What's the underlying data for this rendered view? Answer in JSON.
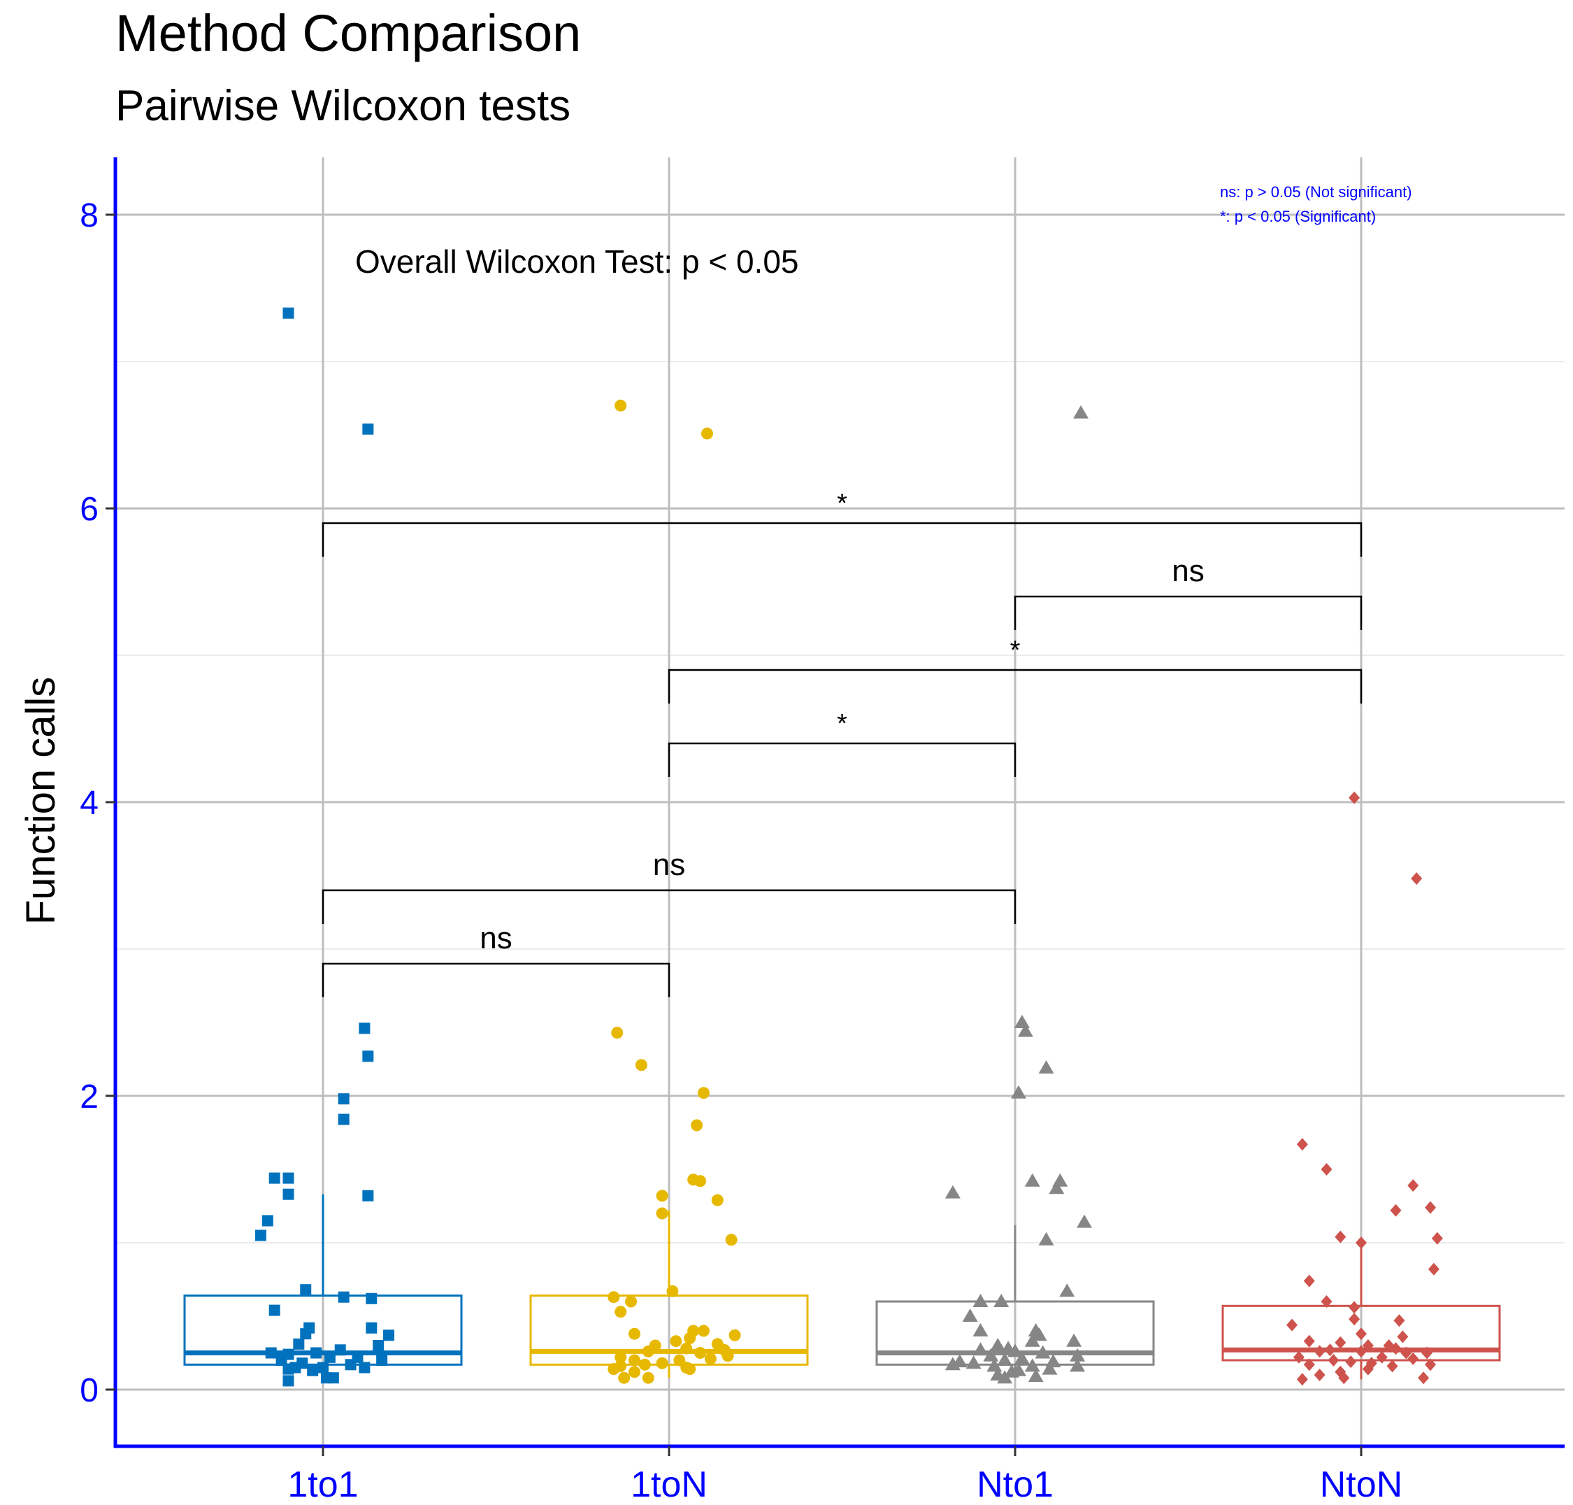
{
  "chart_data": {
    "type": "box",
    "title": "Method Comparison",
    "subtitle": "Pairwise Wilcoxon tests",
    "ylabel": "Function calls",
    "xlabel": "",
    "ylim": [
      -0.4,
      8.4
    ],
    "yticks": [
      0,
      2,
      4,
      6,
      8
    ],
    "categories": [
      "1to1",
      "1toN",
      "Nto1",
      "NtoN"
    ],
    "annotation": "Overall Wilcoxon Test: p < 0.05",
    "legend_notes": [
      "ns: p > 0.05 (Not significant)",
      "*: p < 0.05 (Significant)"
    ],
    "colors": {
      "1to1": "#0072BD",
      "1toN": "#E7B800",
      "Nto1": "#868686",
      "NtoN": "#CD534C",
      "axis": "#0000FF",
      "grid": "#BEBEBE"
    },
    "series": [
      {
        "name": "1to1",
        "shape": "square",
        "box": {
          "q1": 0.17,
          "median": 0.25,
          "q3": 0.64,
          "whisker_low": 0.05,
          "whisker_high": 1.33
        },
        "points": [
          [
            -0.1,
            7.33
          ],
          [
            0.13,
            6.54
          ],
          [
            0.12,
            2.46
          ],
          [
            0.13,
            2.27
          ],
          [
            0.06,
            1.98
          ],
          [
            0.06,
            1.84
          ],
          [
            0.13,
            1.32
          ],
          [
            -0.14,
            1.44
          ],
          [
            -0.1,
            1.44
          ],
          [
            -0.1,
            1.33
          ],
          [
            -0.16,
            1.15
          ],
          [
            -0.18,
            1.05
          ],
          [
            -0.05,
            0.68
          ],
          [
            0.06,
            0.63
          ],
          [
            0.14,
            0.62
          ],
          [
            -0.14,
            0.54
          ],
          [
            -0.04,
            0.42
          ],
          [
            -0.05,
            0.38
          ],
          [
            0.14,
            0.42
          ],
          [
            0.19,
            0.37
          ],
          [
            0.16,
            0.3
          ],
          [
            -0.07,
            0.31
          ],
          [
            0.05,
            0.27
          ],
          [
            -0.15,
            0.25
          ],
          [
            -0.1,
            0.24
          ],
          [
            -0.02,
            0.25
          ],
          [
            0.02,
            0.22
          ],
          [
            0.1,
            0.22
          ],
          [
            0.17,
            0.2
          ],
          [
            -0.12,
            0.2
          ],
          [
            -0.06,
            0.18
          ],
          [
            0.08,
            0.17
          ],
          [
            -0.1,
            0.14
          ],
          [
            0.0,
            0.15
          ],
          [
            0.12,
            0.15
          ],
          [
            -0.03,
            0.13
          ],
          [
            -0.08,
            0.15
          ],
          [
            -0.1,
            0.06
          ],
          [
            0.01,
            0.08
          ],
          [
            0.03,
            0.08
          ]
        ]
      },
      {
        "name": "1toN",
        "shape": "circle",
        "box": {
          "q1": 0.17,
          "median": 0.26,
          "q3": 0.64,
          "whisker_low": 0.08,
          "whisker_high": 1.22
        },
        "points": [
          [
            -0.14,
            6.7
          ],
          [
            0.11,
            6.51
          ],
          [
            -0.15,
            2.43
          ],
          [
            -0.08,
            2.21
          ],
          [
            0.1,
            2.02
          ],
          [
            0.08,
            1.8
          ],
          [
            0.07,
            1.43
          ],
          [
            0.09,
            1.42
          ],
          [
            -0.02,
            1.32
          ],
          [
            0.14,
            1.29
          ],
          [
            -0.02,
            1.2
          ],
          [
            0.18,
            1.02
          ],
          [
            0.01,
            0.67
          ],
          [
            -0.16,
            0.63
          ],
          [
            -0.11,
            0.6
          ],
          [
            -0.14,
            0.53
          ],
          [
            0.07,
            0.4
          ],
          [
            0.1,
            0.4
          ],
          [
            0.19,
            0.37
          ],
          [
            -0.1,
            0.38
          ],
          [
            0.02,
            0.33
          ],
          [
            0.06,
            0.35
          ],
          [
            0.14,
            0.31
          ],
          [
            -0.04,
            0.3
          ],
          [
            0.05,
            0.28
          ],
          [
            0.16,
            0.27
          ],
          [
            -0.06,
            0.26
          ],
          [
            0.09,
            0.25
          ],
          [
            0.17,
            0.23
          ],
          [
            -0.14,
            0.22
          ],
          [
            -0.1,
            0.2
          ],
          [
            0.03,
            0.2
          ],
          [
            0.12,
            0.21
          ],
          [
            -0.02,
            0.18
          ],
          [
            -0.07,
            0.17
          ],
          [
            0.05,
            0.15
          ],
          [
            0.06,
            0.14
          ],
          [
            -0.16,
            0.14
          ],
          [
            -0.1,
            0.12
          ],
          [
            -0.13,
            0.08
          ],
          [
            -0.06,
            0.08
          ],
          [
            -0.14,
            0.16
          ]
        ]
      },
      {
        "name": "Nto1",
        "shape": "triangle",
        "box": {
          "q1": 0.17,
          "median": 0.25,
          "q3": 0.6,
          "whisker_low": 0.08,
          "whisker_high": 1.12
        },
        "points": [
          [
            0.19,
            6.65
          ],
          [
            0.02,
            2.5
          ],
          [
            0.03,
            2.44
          ],
          [
            0.09,
            2.19
          ],
          [
            0.01,
            2.02
          ],
          [
            0.05,
            1.42
          ],
          [
            0.13,
            1.42
          ],
          [
            0.12,
            1.37
          ],
          [
            -0.18,
            1.34
          ],
          [
            0.2,
            1.14
          ],
          [
            0.09,
            1.02
          ],
          [
            0.15,
            0.67
          ],
          [
            -0.1,
            0.6
          ],
          [
            -0.04,
            0.6
          ],
          [
            -0.13,
            0.5
          ],
          [
            0.06,
            0.4
          ],
          [
            0.07,
            0.37
          ],
          [
            -0.1,
            0.4
          ],
          [
            0.05,
            0.33
          ],
          [
            0.17,
            0.33
          ],
          [
            -0.05,
            0.3
          ],
          [
            -0.02,
            0.28
          ],
          [
            0.0,
            0.26
          ],
          [
            -0.1,
            0.27
          ],
          [
            0.08,
            0.25
          ],
          [
            0.18,
            0.23
          ],
          [
            -0.07,
            0.23
          ],
          [
            -0.03,
            0.2
          ],
          [
            0.02,
            0.21
          ],
          [
            0.11,
            0.19
          ],
          [
            -0.16,
            0.19
          ],
          [
            -0.12,
            0.18
          ],
          [
            -0.06,
            0.16
          ],
          [
            0.05,
            0.16
          ],
          [
            0.1,
            0.14
          ],
          [
            0.18,
            0.16
          ],
          [
            -0.18,
            0.17
          ],
          [
            -0.01,
            0.12
          ],
          [
            -0.05,
            0.1
          ],
          [
            0.06,
            0.09
          ],
          [
            0.01,
            0.13
          ],
          [
            -0.03,
            0.08
          ]
        ]
      },
      {
        "name": "NtoN",
        "shape": "diamond",
        "box": {
          "q1": 0.2,
          "median": 0.27,
          "q3": 0.57,
          "whisker_low": 0.07,
          "whisker_high": 0.97
        },
        "points": [
          [
            -0.02,
            4.03
          ],
          [
            0.16,
            3.48
          ],
          [
            -0.17,
            1.67
          ],
          [
            -0.1,
            1.5
          ],
          [
            0.15,
            1.39
          ],
          [
            0.2,
            1.24
          ],
          [
            0.1,
            1.22
          ],
          [
            -0.06,
            1.04
          ],
          [
            0.0,
            1.0
          ],
          [
            0.22,
            1.03
          ],
          [
            0.21,
            0.82
          ],
          [
            -0.15,
            0.74
          ],
          [
            -0.1,
            0.6
          ],
          [
            -0.02,
            0.56
          ],
          [
            -0.02,
            0.48
          ],
          [
            0.11,
            0.47
          ],
          [
            -0.2,
            0.44
          ],
          [
            0.0,
            0.38
          ],
          [
            0.12,
            0.36
          ],
          [
            -0.15,
            0.33
          ],
          [
            -0.06,
            0.32
          ],
          [
            0.08,
            0.3
          ],
          [
            0.02,
            0.3
          ],
          [
            0.1,
            0.28
          ],
          [
            -0.09,
            0.27
          ],
          [
            -0.12,
            0.26
          ],
          [
            0.0,
            0.26
          ],
          [
            0.13,
            0.25
          ],
          [
            0.19,
            0.25
          ],
          [
            -0.18,
            0.22
          ],
          [
            0.06,
            0.22
          ],
          [
            0.15,
            0.21
          ],
          [
            -0.08,
            0.2
          ],
          [
            -0.03,
            0.19
          ],
          [
            0.03,
            0.18
          ],
          [
            -0.15,
            0.17
          ],
          [
            0.09,
            0.16
          ],
          [
            0.2,
            0.17
          ],
          [
            -0.06,
            0.12
          ],
          [
            0.02,
            0.14
          ],
          [
            -0.12,
            0.1
          ],
          [
            -0.17,
            0.07
          ],
          [
            -0.05,
            0.08
          ],
          [
            0.18,
            0.08
          ]
        ]
      }
    ],
    "comparisons": [
      {
        "from": "1to1",
        "to": "1toN",
        "y": 2.9,
        "label": "ns"
      },
      {
        "from": "1to1",
        "to": "Nto1",
        "y": 3.4,
        "label": "ns"
      },
      {
        "from": "1toN",
        "to": "Nto1",
        "y": 4.4,
        "label": "*"
      },
      {
        "from": "1toN",
        "to": "NtoN",
        "y": 4.9,
        "label": "*"
      },
      {
        "from": "Nto1",
        "to": "NtoN",
        "y": 5.4,
        "label": "ns"
      },
      {
        "from": "1to1",
        "to": "NtoN",
        "y": 5.9,
        "label": "*"
      }
    ]
  }
}
